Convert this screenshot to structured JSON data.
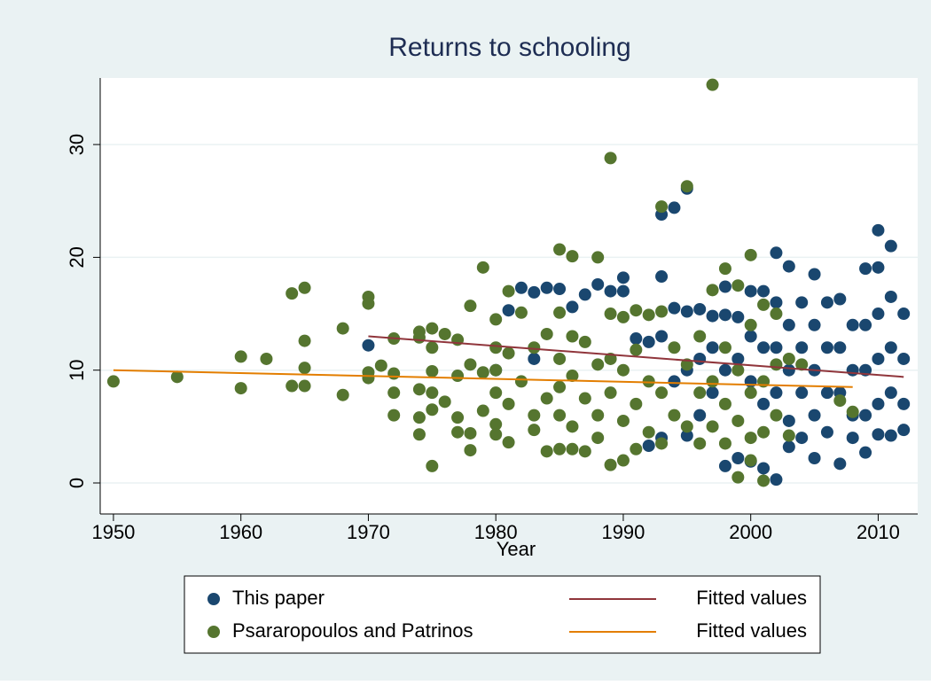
{
  "chart_data": {
    "type": "scatter",
    "title": "Returns to schooling",
    "xlabel": "Year",
    "xlim": [
      1948.96,
      2013.1
    ],
    "ylim": [
      -2.75,
      35.9
    ],
    "xticks": [
      1950,
      1960,
      1970,
      1980,
      1990,
      2000,
      2010
    ],
    "yticks": [
      0,
      10,
      20,
      30
    ],
    "grid": true,
    "series": [
      {
        "name": "This paper",
        "color": "#1a476f",
        "mode": "markers",
        "x": [
          1970,
          1980,
          1981,
          1982,
          1983,
          1983,
          1984,
          1985,
          1986,
          1987,
          1988,
          1989,
          1990,
          1990,
          1991,
          1992,
          1992,
          1993,
          1993,
          1993,
          1993,
          1994,
          1994,
          1994,
          1995,
          1995,
          1995,
          1995,
          1996,
          1996,
          1996,
          1997,
          1997,
          1997,
          1998,
          1998,
          1998,
          1998,
          1999,
          1999,
          1999,
          2000,
          2000,
          2000,
          2000,
          2001,
          2001,
          2001,
          2001,
          2002,
          2002,
          2002,
          2002,
          2002,
          2003,
          2003,
          2003,
          2003,
          2003,
          2004,
          2004,
          2004,
          2004,
          2005,
          2005,
          2005,
          2005,
          2005,
          2006,
          2006,
          2006,
          2006,
          2007,
          2007,
          2007,
          2007,
          2008,
          2008,
          2008,
          2008,
          2009,
          2009,
          2009,
          2009,
          2009,
          2010,
          2010,
          2010,
          2010,
          2010,
          2010,
          2011,
          2011,
          2011,
          2011,
          2011,
          2012,
          2012,
          2012,
          2012
        ],
        "values": [
          12.2,
          10,
          15.3,
          17.3,
          16.9,
          11,
          17.3,
          17.2,
          15.6,
          16.7,
          17.6,
          17,
          18.2,
          17,
          12.8,
          12.5,
          3.3,
          23.8,
          18.3,
          13,
          4,
          24.4,
          15.5,
          9,
          26.1,
          15.2,
          10,
          4.2,
          15.4,
          11,
          6,
          14.8,
          12,
          8,
          17.4,
          14.9,
          10,
          1.5,
          14.7,
          11,
          2.2,
          17,
          13,
          9,
          1.9,
          17,
          12,
          7,
          1.3,
          20.4,
          16,
          12,
          8,
          0.3,
          19.2,
          14,
          10,
          5.5,
          3.2,
          16,
          12,
          8,
          4,
          18.5,
          14,
          10,
          6,
          2.2,
          16,
          12,
          8,
          4.5,
          16.3,
          12,
          8,
          1.7,
          14,
          10,
          6,
          4,
          19,
          14,
          10,
          6,
          2.7,
          22.4,
          19.1,
          15,
          11,
          7,
          4.3,
          21,
          16.5,
          12,
          8,
          4.2,
          15,
          11,
          7,
          4.7
        ]
      },
      {
        "name": "Psararopoulos and Patrinos",
        "color": "#55752f",
        "mode": "markers",
        "x": [
          1950,
          1955,
          1960,
          1960,
          1962,
          1964,
          1964,
          1965,
          1965,
          1965,
          1965,
          1968,
          1968,
          1970,
          1970,
          1970,
          1970,
          1971,
          1972,
          1972,
          1972,
          1972,
          1974,
          1974,
          1974,
          1974,
          1974,
          1975,
          1975,
          1975,
          1975,
          1975,
          1975,
          1976,
          1976,
          1977,
          1977,
          1977,
          1977,
          1978,
          1978,
          1978,
          1978,
          1979,
          1979,
          1979,
          1980,
          1980,
          1980,
          1980,
          1980,
          1980,
          1981,
          1981,
          1981,
          1981,
          1982,
          1982,
          1983,
          1983,
          1983,
          1984,
          1984,
          1984,
          1985,
          1985,
          1985,
          1985,
          1985,
          1985,
          1986,
          1986,
          1986,
          1986,
          1986,
          1987,
          1987,
          1987,
          1988,
          1988,
          1988,
          1988,
          1989,
          1989,
          1989,
          1989,
          1989,
          1990,
          1990,
          1990,
          1990,
          1991,
          1991,
          1991,
          1991,
          1992,
          1992,
          1992,
          1993,
          1993,
          1993,
          1993,
          1994,
          1994,
          1995,
          1995,
          1995,
          1996,
          1996,
          1996,
          1997,
          1997,
          1997,
          1997,
          1998,
          1998,
          1998,
          1998,
          1999,
          1999,
          1999,
          1999,
          2000,
          2000,
          2000,
          2000,
          2000,
          2001,
          2001,
          2001,
          2001,
          2002,
          2002,
          2002,
          2003,
          2003,
          2004,
          2007,
          2008
        ],
        "values": [
          9,
          9.4,
          11.2,
          8.4,
          11,
          16.8,
          8.6,
          17.3,
          12.6,
          10.2,
          8.6,
          13.7,
          7.8,
          16.5,
          15.9,
          9.8,
          9.3,
          10.4,
          12.8,
          9.7,
          8,
          6,
          13.4,
          12.9,
          8.3,
          5.8,
          4.3,
          13.7,
          12,
          9.9,
          8,
          6.5,
          1.5,
          13.2,
          7.2,
          12.7,
          9.5,
          5.8,
          4.5,
          15.7,
          10.5,
          4.4,
          2.9,
          19.1,
          9.8,
          6.4,
          14.5,
          12,
          10,
          8,
          5.2,
          4.3,
          17,
          11.5,
          7,
          3.6,
          15.1,
          9,
          12,
          6,
          4.7,
          13.2,
          7.5,
          2.8,
          20.7,
          15.1,
          11,
          8.5,
          6,
          3,
          20.1,
          13,
          9.5,
          5,
          3,
          12.5,
          7.5,
          2.8,
          20,
          10.5,
          6,
          4,
          28.8,
          15,
          11,
          8,
          1.6,
          14.7,
          10,
          5.5,
          2,
          15.3,
          11.8,
          7,
          3,
          14.9,
          9,
          4.5,
          24.5,
          15.2,
          8,
          3.5,
          12,
          6,
          26.3,
          10.5,
          5,
          13,
          8,
          3.5,
          35.3,
          17.1,
          9,
          5,
          19,
          12,
          7,
          3.5,
          17.5,
          10,
          5.5,
          0.5,
          20.2,
          14,
          8,
          4,
          2,
          15.8,
          9,
          4.5,
          0.2,
          15,
          10.5,
          6,
          11,
          4.2,
          10.5,
          7.3,
          6.3
        ]
      },
      {
        "name": "Fitted values",
        "color": "#90353b",
        "mode": "line",
        "x": [
          1970,
          2012
        ],
        "values": [
          13,
          9.4
        ]
      },
      {
        "name": "Fitted values",
        "color": "#e37e00",
        "mode": "line",
        "x": [
          1950,
          2008
        ],
        "values": [
          10,
          8.5
        ]
      }
    ]
  }
}
